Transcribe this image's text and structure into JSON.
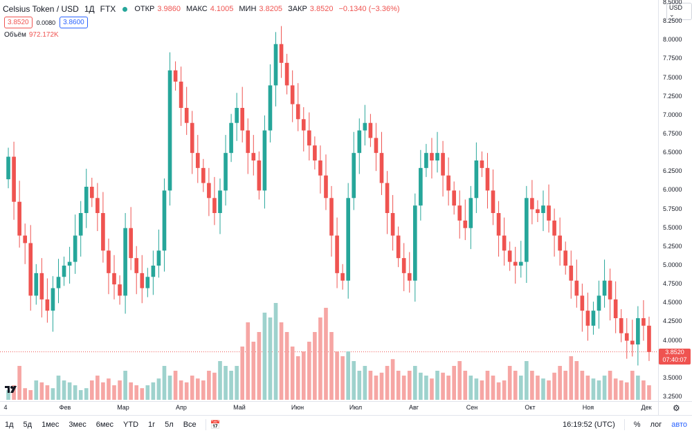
{
  "legend": {
    "symbol": "Celsius Token / USD",
    "interval": "1Д",
    "exchange": "FTX",
    "open_label": "ОТКР",
    "open_value": "3.9860",
    "high_label": "МАКС",
    "high_value": "4.1005",
    "low_label": "МИН",
    "low_value": "3.8205",
    "close_label": "ЗАКР",
    "close_value": "3.8520",
    "change": "−0.1340 (−3.36%)"
  },
  "quote": {
    "sell": "3.8520",
    "spread": "0.0080",
    "buy": "3.8600"
  },
  "volume": {
    "label": "Объём",
    "value": "972.172K"
  },
  "price_scale": {
    "currency": "USD",
    "ticks": [
      "8.5000",
      "8.2500",
      "8.0000",
      "7.7500",
      "7.5000",
      "7.2500",
      "7.0000",
      "6.7500",
      "6.5000",
      "6.2500",
      "6.0000",
      "5.7500",
      "5.5000",
      "5.2500",
      "5.0000",
      "4.7500",
      "4.5000",
      "4.2500",
      "4.0000",
      "3.7500",
      "3.5000",
      "3.2500"
    ],
    "last_price": "3.8520",
    "countdown": "07:40:07"
  },
  "time_scale": {
    "ticks": [
      "4",
      "Фев",
      "Мар",
      "Апр",
      "Май",
      "Июн",
      "Июл",
      "Авг",
      "Сен",
      "Окт",
      "Ноя",
      "Дек"
    ]
  },
  "bottom_bar": {
    "ranges": [
      "1д",
      "5д",
      "1мес",
      "3мес",
      "6мес",
      "YTD",
      "1г",
      "5л",
      "Все"
    ],
    "clock": "16:19:52 (UTC)",
    "percent": "%",
    "log": "лог",
    "auto": "авто"
  },
  "colors": {
    "up": "#26a69a",
    "down": "#ef5350",
    "up_vol": "#9ed2cd",
    "down_vol": "#f6a6a4"
  },
  "chart_data": {
    "type": "candlestick",
    "symbol": "Celsius Token / USD",
    "interval": "1D",
    "ylim": [
      3.25,
      8.5
    ],
    "x_labels": [
      "4",
      "Фев",
      "Мар",
      "Апр",
      "Май",
      "Июн",
      "Июл",
      "Авг",
      "Сен",
      "Окт",
      "Ноя",
      "Дек"
    ],
    "last": {
      "open": 3.986,
      "high": 4.1005,
      "low": 3.8205,
      "close": 3.852,
      "volume": "972.172K"
    },
    "closes": [
      6.45,
      5.85,
      5.4,
      5.3,
      4.6,
      4.9,
      4.55,
      4.4,
      4.7,
      4.85,
      5.0,
      5.05,
      5.4,
      5.7,
      6.05,
      5.9,
      5.7,
      5.2,
      4.9,
      4.75,
      4.6,
      5.5,
      5.1,
      4.9,
      4.7,
      4.85,
      5.0,
      5.2,
      6.0,
      7.6,
      7.45,
      7.1,
      6.9,
      6.5,
      6.3,
      6.1,
      5.9,
      5.7,
      6.0,
      6.5,
      6.9,
      7.1,
      6.8,
      6.5,
      6.4,
      6.0,
      6.8,
      7.4,
      7.95,
      7.7,
      7.4,
      7.15,
      6.95,
      6.8,
      6.6,
      6.4,
      6.2,
      5.9,
      5.4,
      4.9,
      4.8,
      5.9,
      6.5,
      6.8,
      6.9,
      6.7,
      6.5,
      6.1,
      5.7,
      5.4,
      5.1,
      4.9,
      4.8,
      5.8,
      6.3,
      6.5,
      6.4,
      6.5,
      6.2,
      6.0,
      5.8,
      5.6,
      5.5,
      5.9,
      6.4,
      6.3,
      6.0,
      5.7,
      5.4,
      5.2,
      5.05,
      5.0,
      5.05,
      5.9,
      5.75,
      5.7,
      5.8,
      5.6,
      5.4,
      5.2,
      5.0,
      4.8,
      4.6,
      4.4,
      4.2,
      4.4,
      4.6,
      4.8,
      4.55,
      4.3,
      4.1,
      4.0,
      3.95,
      4.3,
      4.2,
      3.85
    ],
    "volumes": [
      0.1,
      0.15,
      0.35,
      0.12,
      0.1,
      0.2,
      0.18,
      0.15,
      0.12,
      0.25,
      0.2,
      0.18,
      0.15,
      0.1,
      0.12,
      0.2,
      0.25,
      0.18,
      0.22,
      0.15,
      0.2,
      0.3,
      0.18,
      0.15,
      0.12,
      0.15,
      0.18,
      0.22,
      0.35,
      0.25,
      0.3,
      0.2,
      0.18,
      0.25,
      0.22,
      0.2,
      0.3,
      0.28,
      0.4,
      0.35,
      0.3,
      0.35,
      0.55,
      0.8,
      0.6,
      0.7,
      0.9,
      0.85,
      1.0,
      0.8,
      0.7,
      0.55,
      0.45,
      0.5,
      0.6,
      0.7,
      0.85,
      0.95,
      0.7,
      0.5,
      0.45,
      0.5,
      0.4,
      0.3,
      0.35,
      0.3,
      0.25,
      0.28,
      0.35,
      0.42,
      0.3,
      0.25,
      0.3,
      0.35,
      0.28,
      0.25,
      0.22,
      0.3,
      0.28,
      0.25,
      0.35,
      0.4,
      0.3,
      0.25,
      0.22,
      0.2,
      0.3,
      0.25,
      0.18,
      0.2,
      0.35,
      0.3,
      0.25,
      0.4,
      0.3,
      0.25,
      0.22,
      0.2,
      0.28,
      0.35,
      0.3,
      0.45,
      0.4,
      0.3,
      0.25,
      0.22,
      0.2,
      0.25,
      0.3,
      0.22,
      0.2,
      0.18,
      0.3,
      0.25,
      0.2,
      0.15
    ]
  }
}
